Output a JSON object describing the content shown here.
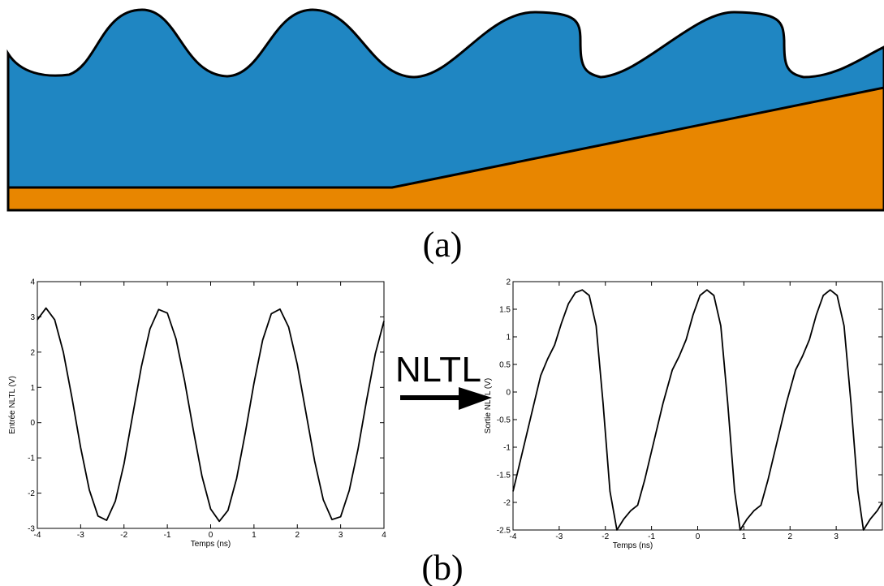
{
  "labels": {
    "a": "(a)",
    "b": "(b)",
    "arrow": "NLTL"
  },
  "chart_data": [
    {
      "type": "line",
      "xlabel": "Temps (ns)",
      "ylabel": "Entrée NLTL (V)",
      "xlim": [
        -4,
        4
      ],
      "ylim": [
        -3,
        4
      ],
      "xticks": [
        -4,
        -3,
        -2,
        -1,
        0,
        1,
        2,
        3,
        4
      ],
      "yticks": [
        -3,
        -2,
        -1,
        0,
        1,
        2,
        3,
        4
      ],
      "x": [
        -4,
        -3.8,
        -3.6,
        -3.4,
        -3.2,
        -3,
        -2.8,
        -2.6,
        -2.4,
        -2.2,
        -2,
        -1.8,
        -1.6,
        -1.4,
        -1.2,
        -1,
        -0.8,
        -0.6,
        -0.4,
        -0.2,
        0,
        0.2,
        0.4,
        0.6,
        0.8,
        1,
        1.2,
        1.4,
        1.6,
        1.8,
        2,
        2.2,
        2.4,
        2.6,
        2.8,
        3,
        3.2,
        3.4,
        3.6,
        3.8,
        4
      ],
      "series": [
        {
          "color": "#000000",
          "values": [
            2.92,
            3.25,
            2.92,
            2.0,
            0.7,
            -0.71,
            -1.91,
            -2.65,
            -2.77,
            -2.23,
            -1.17,
            0.21,
            1.58,
            2.66,
            3.21,
            3.11,
            2.38,
            1.18,
            -0.21,
            -1.52,
            -2.45,
            -2.8,
            -2.49,
            -1.58,
            -0.29,
            1.12,
            2.34,
            3.09,
            3.22,
            2.71,
            1.65,
            0.28,
            -1.09,
            -2.19,
            -2.75,
            -2.67,
            -1.92,
            -0.76,
            0.64,
            1.95,
            2.88
          ]
        }
      ]
    },
    {
      "type": "line",
      "xlabel": "Temps (ns)",
      "ylabel": "Sortie NLTL (V)",
      "xlim": [
        -4,
        4
      ],
      "ylim": [
        -2.5,
        2
      ],
      "xticks": [
        -4,
        -3,
        -2,
        -1,
        0,
        1,
        2,
        3
      ],
      "yticks": [
        -2.5,
        -2,
        -1.5,
        -1,
        -0.5,
        0,
        0.5,
        1,
        1.5,
        2
      ],
      "x": [
        -4,
        -3.8,
        -3.6,
        -3.4,
        -3.25,
        -3.1,
        -2.95,
        -2.8,
        -2.65,
        -2.5,
        -2.35,
        -2.2,
        -2.05,
        -1.9,
        -1.75,
        -1.6,
        -1.45,
        -1.3,
        -1.15,
        -0.95,
        -0.75,
        -0.55,
        -0.4,
        -0.25,
        -0.1,
        0.05,
        0.2,
        0.35,
        0.5,
        0.65,
        0.8,
        0.92,
        1.07,
        1.22,
        1.37,
        1.52,
        1.72,
        1.92,
        2.12,
        2.27,
        2.42,
        2.57,
        2.72,
        2.87,
        3.02,
        3.17,
        3.32,
        3.47,
        3.59,
        3.74,
        3.89,
        4
      ],
      "series": [
        {
          "color": "#000000",
          "values": [
            -1.8,
            -1.1,
            -0.4,
            0.3,
            0.6,
            0.85,
            1.25,
            1.6,
            1.8,
            1.85,
            1.75,
            1.2,
            -0.2,
            -1.8,
            -2.5,
            -2.3,
            -2.15,
            -2.05,
            -1.6,
            -0.9,
            -0.2,
            0.4,
            0.65,
            0.95,
            1.4,
            1.75,
            1.85,
            1.75,
            1.2,
            -0.2,
            -1.8,
            -2.5,
            -2.3,
            -2.15,
            -2.05,
            -1.6,
            -0.9,
            -0.2,
            0.4,
            0.65,
            0.95,
            1.4,
            1.75,
            1.85,
            1.75,
            1.2,
            -0.2,
            -1.8,
            -2.5,
            -2.3,
            -2.15,
            -2.0
          ]
        }
      ]
    }
  ]
}
